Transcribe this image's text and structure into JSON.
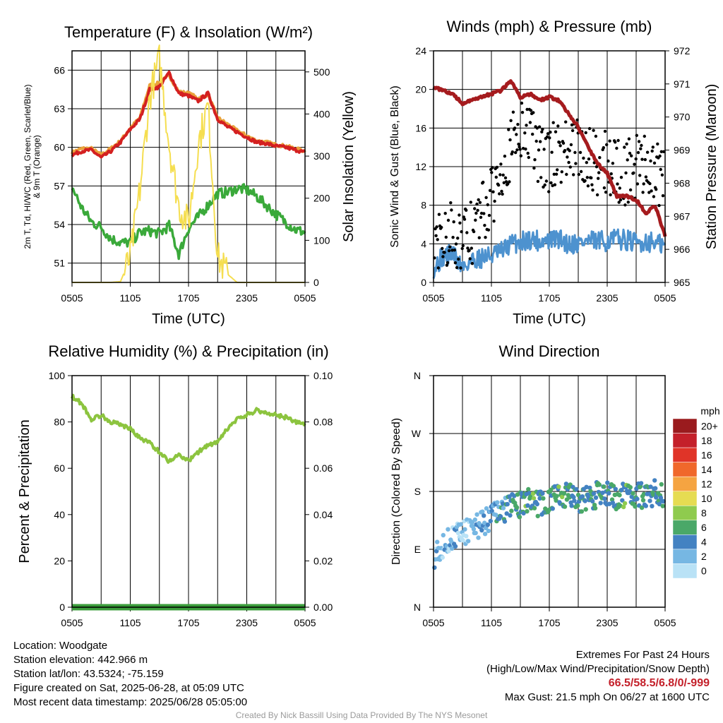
{
  "chart_data": [
    {
      "type": "line",
      "title": "Temperature (F) & Insolation (W/m²)",
      "xlabel": "Time (UTC)",
      "ylabel": "2m T, Td, HI/WC (Red, Green, Scarlet/Blue) & 9m T (Orange)",
      "ylabel2": "Solar Insolation (Yellow)",
      "x_ticks": [
        "0505",
        "1105",
        "1705",
        "2305",
        "0505"
      ],
      "ylim": [
        49.5,
        67.5
      ],
      "y_ticks": [
        51,
        54,
        57,
        60,
        63,
        66
      ],
      "y2lim": [
        0,
        550
      ],
      "y2_ticks": [
        0,
        100,
        200,
        300,
        400,
        500
      ],
      "x_hours": [
        0,
        1,
        2,
        3,
        4,
        5,
        6,
        7,
        8,
        9,
        10,
        11,
        12,
        13,
        14,
        15,
        16,
        17,
        18,
        19,
        20,
        21,
        22,
        23,
        24
      ],
      "series": [
        {
          "color": "#e9a23b",
          "axis": "left",
          "values": [
            59.6,
            59.9,
            59.9,
            59.4,
            59.9,
            60.5,
            61.5,
            62.3,
            64.8,
            65.0,
            65.6,
            64.3,
            64.2,
            63.8,
            64.1,
            62.3,
            61.8,
            61.3,
            60.9,
            60.5,
            60.4,
            60.2,
            60.1,
            59.9,
            59.7
          ]
        },
        {
          "color": "#d42020",
          "axis": "left",
          "values": [
            59.4,
            59.7,
            59.8,
            59.2,
            59.7,
            60.4,
            61.4,
            62.2,
            64.5,
            64.7,
            65.8,
            64.2,
            64.0,
            63.6,
            64.2,
            62.2,
            61.6,
            61.2,
            60.8,
            60.4,
            60.3,
            60.1,
            60.0,
            59.8,
            59.6
          ]
        },
        {
          "color": "#3aa93a",
          "axis": "left",
          "values": [
            56.9,
            55.3,
            54.2,
            53.8,
            52.9,
            52.6,
            52.6,
            53.4,
            53.5,
            53.3,
            53.9,
            51.7,
            53.7,
            54.6,
            55.5,
            56.4,
            56.5,
            56.8,
            56.7,
            56.2,
            55.5,
            54.8,
            54.2,
            53.6,
            53.4
          ]
        },
        {
          "color": "#f5de50",
          "axis": "right",
          "values": [
            0,
            0,
            0,
            0,
            0,
            2,
            60,
            220,
            440,
            530,
            330,
            180,
            140,
            330,
            420,
            60,
            20,
            0,
            0,
            0,
            0,
            0,
            0,
            0,
            0
          ]
        }
      ]
    },
    {
      "type": "scatter",
      "title": "Winds (mph) & Pressure (mb)",
      "xlabel": "Time (UTC)",
      "ylabel": "Sonic Wind & Gust (Blue, Black)",
      "ylabel2": "Station Pressure (Maroon)",
      "x_ticks": [
        "0505",
        "1105",
        "1705",
        "2305",
        "0505"
      ],
      "ylim": [
        0,
        24
      ],
      "y_ticks": [
        0,
        4,
        8,
        12,
        16,
        20,
        24
      ],
      "y2lim": [
        965,
        972
      ],
      "y2_ticks": [
        965,
        966,
        967,
        968,
        969,
        970,
        971,
        972
      ],
      "x_hours": [
        0,
        1,
        2,
        3,
        4,
        5,
        6,
        7,
        8,
        9,
        10,
        11,
        12,
        13,
        14,
        15,
        16,
        17,
        18,
        19,
        20,
        21,
        22,
        23,
        24
      ],
      "series": [
        {
          "name": "Sonic Wind",
          "color": "#4d92cf",
          "axis": "left",
          "values": [
            1.5,
            2.7,
            3.0,
            1.6,
            2.3,
            2.6,
            2.8,
            3.1,
            4.0,
            4.2,
            4.5,
            4.3,
            4.3,
            4.5,
            4.0,
            4.1,
            4.3,
            4.2,
            4.3,
            4.5,
            4.4,
            4.0,
            4.3,
            4.1,
            3.7
          ]
        },
        {
          "name": "Gust",
          "color": "#000000",
          "axis": "left",
          "values": [
            3.5,
            5.0,
            5.5,
            4.0,
            5.2,
            7.2,
            8.4,
            12.5,
            13.5,
            16.3,
            15.5,
            13.2,
            12.6,
            14.0,
            13.2,
            13.7,
            12.7,
            12.5,
            12.7,
            11.5,
            11.3,
            11.8,
            12.7,
            11.0,
            11.0
          ]
        },
        {
          "name": "Station Pressure",
          "color": "#a51b1e",
          "axis": "right",
          "values": [
            970.9,
            970.8,
            970.7,
            970.4,
            970.5,
            970.6,
            970.7,
            970.8,
            971.1,
            970.6,
            970.7,
            970.5,
            970.6,
            970.5,
            970.1,
            969.7,
            969.1,
            968.6,
            968.3,
            967.6,
            967.6,
            967.5,
            967.1,
            967.3,
            966.4
          ]
        }
      ]
    },
    {
      "type": "line",
      "title": "Relative Humidity (%) & Precipitation (in)",
      "ylabel": "Percent & Precipitation",
      "x_ticks": [
        "0505",
        "1105",
        "1705",
        "2305",
        "0505"
      ],
      "ylim": [
        0,
        100
      ],
      "y_ticks": [
        0,
        20,
        40,
        60,
        80,
        100
      ],
      "y2lim": [
        0,
        0.1
      ],
      "y2_ticks": [
        "0.00",
        "0.02",
        "0.04",
        "0.06",
        "0.08",
        "0.10"
      ],
      "x_hours": [
        0,
        1,
        2,
        3,
        4,
        5,
        6,
        7,
        8,
        9,
        10,
        11,
        12,
        13,
        14,
        15,
        16,
        17,
        18,
        19,
        20,
        21,
        22,
        23,
        24
      ],
      "series": [
        {
          "name": "Relative Humidity",
          "color": "#8cc43f",
          "axis": "left",
          "values": [
            91,
            88,
            81,
            83,
            80,
            79,
            77,
            73,
            71,
            67,
            63,
            66,
            63,
            67,
            70,
            71,
            77,
            81,
            83,
            85,
            84,
            83,
            82,
            80,
            79
          ]
        },
        {
          "name": "Precipitation",
          "color": "#3b9c3b",
          "axis": "right",
          "values": [
            0,
            0,
            0,
            0,
            0,
            0,
            0,
            0,
            0,
            0,
            0,
            0,
            0,
            0,
            0,
            0,
            0,
            0,
            0,
            0,
            0,
            0,
            0,
            0,
            0
          ]
        }
      ]
    },
    {
      "type": "scatter",
      "title": "Wind Direction",
      "ylabel": "Direction (Colored By Speed)",
      "x_ticks": [
        "0505",
        "1105",
        "1705",
        "2305",
        "0505"
      ],
      "y_ticks": [
        "N",
        "E",
        "S",
        "W",
        "N"
      ],
      "ylim": [
        0,
        360
      ],
      "colorbar": {
        "title": "mph",
        "labels": [
          "20+",
          "18",
          "16",
          "14",
          "12",
          "10",
          "8",
          "6",
          "4",
          "2",
          "0"
        ],
        "colors": [
          "#9a1b1e",
          "#c4202a",
          "#e03428",
          "#f0682b",
          "#f5a441",
          "#e6dc52",
          "#8fcb4e",
          "#4aa868",
          "#4382c2",
          "#76b7e3",
          "#b9e2f6"
        ]
      },
      "x_hours": [
        0,
        1,
        2,
        3,
        4,
        5,
        6,
        7,
        8,
        9,
        10,
        11,
        12,
        13,
        14,
        15,
        16,
        17,
        18,
        19,
        20,
        21,
        22,
        23,
        24
      ],
      "direction_deg": [
        80,
        95,
        110,
        115,
        120,
        130,
        140,
        150,
        155,
        160,
        165,
        160,
        165,
        170,
        175,
        165,
        170,
        175,
        175,
        170,
        175,
        172,
        175,
        178,
        175
      ],
      "speed_mph": [
        2,
        2,
        2,
        1,
        2,
        3,
        3,
        4,
        5,
        5,
        6,
        5,
        5,
        6,
        5,
        5,
        5,
        5,
        5,
        5,
        6,
        5,
        5,
        5,
        4
      ]
    }
  ],
  "footer_left": {
    "location": "Location: Woodgate",
    "elevation": "Station elevation: 442.966 m",
    "latlon": "Station lat/lon: 43.5324; -75.159",
    "created": "Figure created on Sat, 2025-06-28, at 05:09 UTC",
    "recent": "Most recent data timestamp: 2025/06/28 05:05:00"
  },
  "footer_right": {
    "title": "Extremes For Past 24 Hours",
    "subtitle": "(High/Low/Max Wind/Precipitation/Snow Depth)",
    "values": "66.5/58.5/6.8/0/-999",
    "max_gust": "Max Gust: 21.5 mph On 06/27 at 1600 UTC"
  },
  "credit": "Created By Nick Bassill Using Data Provided By The NYS Mesonet"
}
